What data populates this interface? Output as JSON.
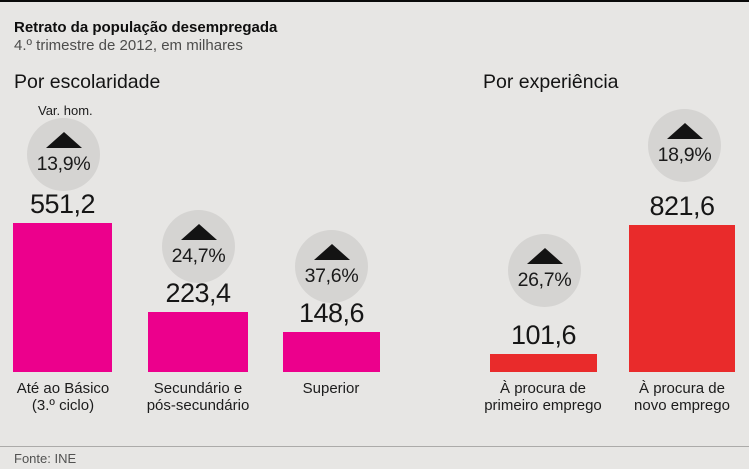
{
  "header": {
    "title": "Retrato da população desempregada",
    "subtitle": "4.º trimestre de 2012, em milhares"
  },
  "footer": {
    "source": "Fonte: INE"
  },
  "colors": {
    "background": "#E7E6E4",
    "education_bar": "#EC008C",
    "experience_bar": "#E92B2B",
    "badge_circle": "#D5D4D2",
    "triangle": "#131313",
    "text": "#141414",
    "muted_text": "#4D4D4C",
    "divider": "#ACABA9"
  },
  "chart_data": [
    {
      "type": "bar",
      "title": "Por escolaridade",
      "annotation": "Var. hom.",
      "unit": "milhares",
      "bar_color": "#EC008C",
      "ylim": [
        0,
        560
      ],
      "bars": [
        {
          "category": "Até ao Básico (3.º ciclo)",
          "category_line1": "Até ao Básico",
          "category_line2": "(3.º ciclo)",
          "value": 551.2,
          "value_label": "551,2",
          "yoy_change": "13,9%",
          "trend": "up"
        },
        {
          "category": "Secundário e pós-secundário",
          "category_line1": "Secundário e",
          "category_line2": "pós-secundário",
          "value": 223.4,
          "value_label": "223,4",
          "yoy_change": "24,7%",
          "trend": "up"
        },
        {
          "category": "Superior",
          "category_line1": "Superior",
          "value": 148.6,
          "value_label": "148,6",
          "yoy_change": "37,6%",
          "trend": "up"
        }
      ]
    },
    {
      "type": "bar",
      "title": "Por experiência",
      "unit": "milhares",
      "bar_color": "#E92B2B",
      "ylim": [
        0,
        830
      ],
      "bars": [
        {
          "category": "À procura de primeiro emprego",
          "category_line1": "À procura de",
          "category_line2": "primeiro emprego",
          "value": 101.6,
          "value_label": "101,6",
          "yoy_change": "26,7%",
          "trend": "up"
        },
        {
          "category": "À procura de novo emprego",
          "category_line1": "À procura de",
          "category_line2": "novo emprego",
          "value": 821.6,
          "value_label": "821,6",
          "yoy_change": "18,9%",
          "trend": "up"
        }
      ]
    }
  ]
}
